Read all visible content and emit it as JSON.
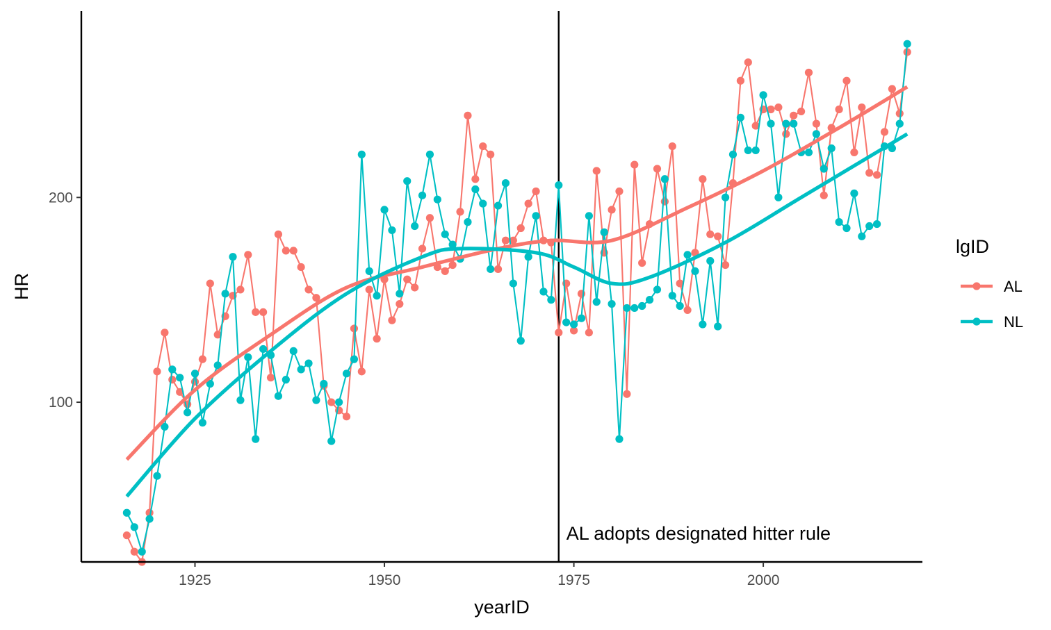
{
  "chart_data": {
    "type": "line",
    "title": "",
    "xlabel": "yearID",
    "ylabel": "HR",
    "xlim": [
      1910,
      2021
    ],
    "ylim": [
      22,
      291
    ],
    "x_ticks": [
      1925,
      1950,
      1975,
      2000
    ],
    "y_ticks": [
      100,
      200
    ],
    "grid": false,
    "legend": {
      "title": "lgID",
      "position": "right"
    },
    "annotation": {
      "vline_x": 1973,
      "text": "AL adopts designated hitter rule"
    },
    "series": [
      {
        "name": "AL",
        "color": "#F8766D",
        "x": [
          1916,
          1917,
          1918,
          1919,
          1920,
          1921,
          1922,
          1923,
          1924,
          1925,
          1926,
          1927,
          1928,
          1929,
          1930,
          1931,
          1932,
          1933,
          1934,
          1935,
          1936,
          1937,
          1938,
          1939,
          1940,
          1941,
          1942,
          1943,
          1944,
          1945,
          1946,
          1947,
          1948,
          1949,
          1950,
          1951,
          1952,
          1953,
          1954,
          1955,
          1956,
          1957,
          1958,
          1959,
          1960,
          1961,
          1962,
          1963,
          1964,
          1965,
          1966,
          1967,
          1968,
          1969,
          1970,
          1971,
          1972,
          1973,
          1974,
          1975,
          1976,
          1977,
          1978,
          1979,
          1980,
          1981,
          1982,
          1983,
          1984,
          1985,
          1986,
          1987,
          1988,
          1989,
          1990,
          1991,
          1992,
          1993,
          1994,
          1995,
          1996,
          1997,
          1998,
          1999,
          2000,
          2001,
          2002,
          2003,
          2004,
          2005,
          2006,
          2007,
          2008,
          2009,
          2010,
          2011,
          2012,
          2013,
          2014,
          2015,
          2016,
          2017,
          2018,
          2019
        ],
        "values": [
          35,
          27,
          22,
          46,
          115,
          134,
          111,
          105,
          99,
          110,
          121,
          158,
          133,
          142,
          152,
          155,
          172,
          144,
          144,
          112,
          182,
          174,
          174,
          166,
          155,
          151,
          108,
          100,
          96,
          93,
          136,
          115,
          155,
          131,
          160,
          140,
          148,
          160,
          156,
          175,
          190,
          166,
          164,
          167,
          193,
          240,
          209,
          225,
          221,
          165,
          179,
          179,
          185,
          197,
          203,
          179,
          178,
          134,
          158,
          135,
          153,
          134,
          213,
          173,
          194,
          203,
          104,
          216,
          168,
          187,
          214,
          198,
          225,
          158,
          145,
          173,
          209,
          182,
          181,
          167,
          207,
          257,
          266,
          235,
          243,
          243,
          244,
          231,
          240,
          242,
          261,
          236,
          201,
          234,
          243,
          257,
          222,
          244,
          212,
          211,
          232,
          253,
          241,
          271
        ],
        "smooth": [
          [
            1916,
            72
          ],
          [
            1925,
            106
          ],
          [
            1935,
            133
          ],
          [
            1945,
            156
          ],
          [
            1955,
            166
          ],
          [
            1965,
            175
          ],
          [
            1972,
            179
          ],
          [
            1980,
            179
          ],
          [
            1990,
            195
          ],
          [
            2000,
            213
          ],
          [
            2010,
            234
          ],
          [
            2019,
            254
          ]
        ]
      },
      {
        "name": "NL",
        "color": "#00BFC4",
        "x": [
          1916,
          1917,
          1918,
          1919,
          1920,
          1921,
          1922,
          1923,
          1924,
          1925,
          1926,
          1927,
          1928,
          1929,
          1930,
          1931,
          1932,
          1933,
          1934,
          1935,
          1936,
          1937,
          1938,
          1939,
          1940,
          1941,
          1942,
          1943,
          1944,
          1945,
          1946,
          1947,
          1948,
          1949,
          1950,
          1951,
          1952,
          1953,
          1954,
          1955,
          1956,
          1957,
          1958,
          1959,
          1960,
          1961,
          1962,
          1963,
          1964,
          1965,
          1966,
          1967,
          1968,
          1969,
          1970,
          1971,
          1972,
          1973,
          1974,
          1975,
          1976,
          1977,
          1978,
          1979,
          1980,
          1981,
          1982,
          1983,
          1984,
          1985,
          1986,
          1987,
          1988,
          1989,
          1990,
          1991,
          1992,
          1993,
          1994,
          1995,
          1996,
          1997,
          1998,
          1999,
          2000,
          2001,
          2002,
          2003,
          2004,
          2005,
          2006,
          2007,
          2008,
          2009,
          2010,
          2011,
          2012,
          2013,
          2014,
          2015,
          2016,
          2017,
          2018,
          2019
        ],
        "values": [
          46,
          39,
          27,
          43,
          64,
          88,
          116,
          112,
          95,
          114,
          90,
          109,
          118,
          153,
          171,
          101,
          122,
          82,
          126,
          123,
          103,
          111,
          125,
          116,
          119,
          101,
          109,
          81,
          100,
          114,
          121,
          221,
          164,
          152,
          194,
          184,
          153,
          208,
          186,
          201,
          221,
          199,
          182,
          177,
          170,
          188,
          204,
          197,
          165,
          196,
          207,
          158,
          130,
          171,
          191,
          154,
          150,
          206,
          139,
          138,
          141,
          191,
          149,
          183,
          148,
          82,
          146,
          146,
          147,
          150,
          155,
          209,
          152,
          147,
          172,
          164,
          138,
          169,
          137,
          200,
          221,
          239,
          223,
          223,
          250,
          236,
          200,
          236,
          236,
          222,
          222,
          231,
          214,
          224,
          188,
          185,
          202,
          181,
          186,
          187,
          225,
          224,
          236,
          275
        ],
        "smooth": [
          [
            1916,
            54
          ],
          [
            1925,
            92
          ],
          [
            1935,
            125
          ],
          [
            1945,
            153
          ],
          [
            1955,
            171
          ],
          [
            1960,
            175
          ],
          [
            1970,
            173
          ],
          [
            1975,
            166
          ],
          [
            1980,
            158
          ],
          [
            1985,
            161
          ],
          [
            1995,
            178
          ],
          [
            2005,
            200
          ],
          [
            2019,
            231
          ]
        ]
      }
    ]
  }
}
